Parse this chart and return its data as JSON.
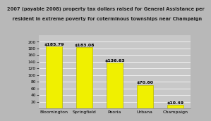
{
  "categories": [
    "Bloomington",
    "Springfield",
    "Peoria",
    "Urbana",
    "Champaign"
  ],
  "values": [
    185.79,
    183.08,
    136.63,
    70.6,
    10.49
  ],
  "bar_color": "#F0F000",
  "bar_edge_color": "#B8B800",
  "background_color": "#B8B8B8",
  "plot_bg_color": "#C8C8C8",
  "title_line1": "2007 (payable 2008) property tax dollars raised for General Assistance per",
  "title_line2": "  resident in extreme poverty for coterminous townships near Champaign",
  "ylim": [
    0,
    220
  ],
  "yticks": [
    20,
    40,
    60,
    80,
    100,
    120,
    140,
    160,
    180,
    200
  ],
  "title_fontsize": 4.8,
  "label_fontsize": 4.5,
  "bar_label_fontsize": 4.5,
  "tick_fontsize": 4.2
}
